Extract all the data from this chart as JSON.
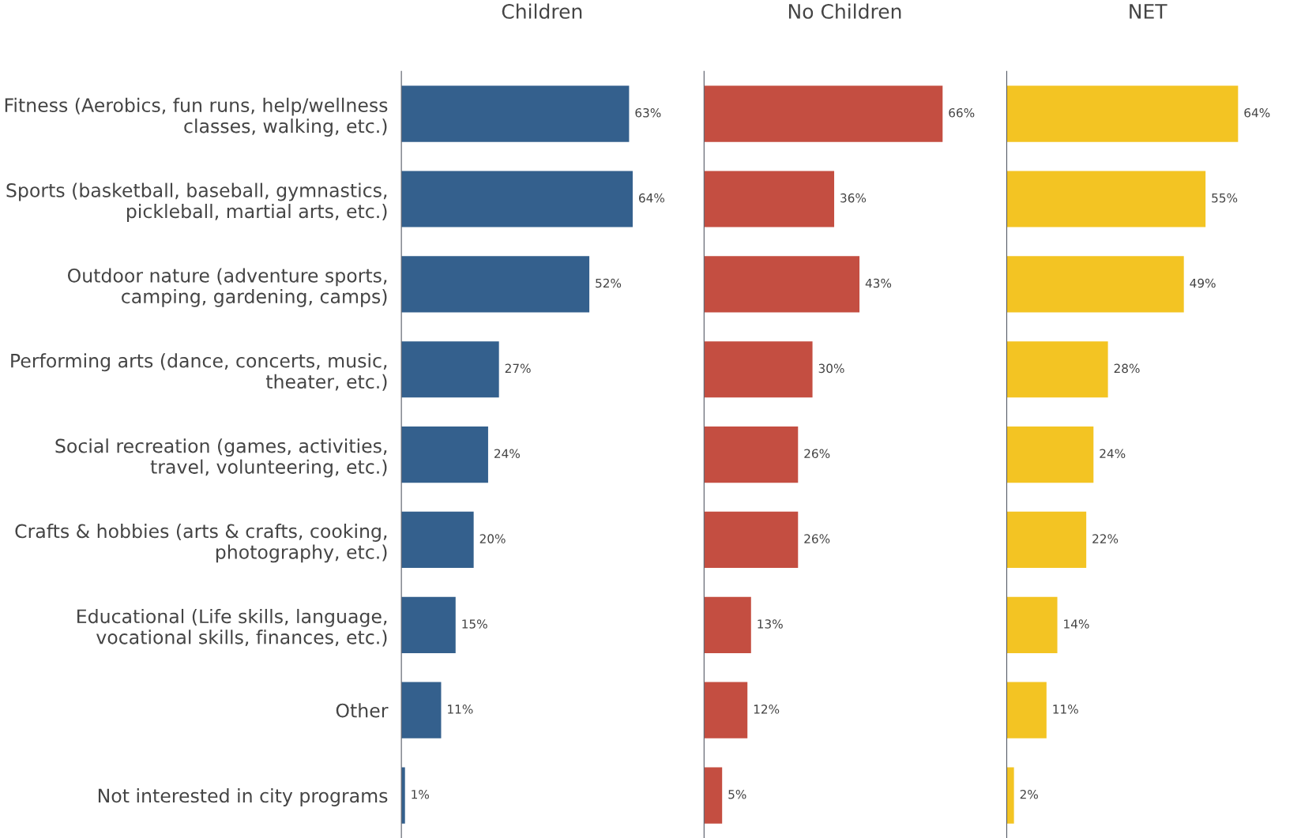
{
  "chart_data": [
    {
      "type": "bar",
      "orientation": "horizontal",
      "title": "Children",
      "tick_labels": "y",
      "grid": false,
      "legend": false,
      "categories": [
        "Fitness (Aerobics, fun runs, help/wellness classes, walking, etc.)",
        "Sports (basketball, baseball, gymnastics, pickleball, martial arts, etc.)",
        "Outdoor nature (adventure sports, camping, gardening, camps)",
        "Performing arts (dance, concerts, music, theater, etc.)",
        "Social recreation (games, activities, travel, volunteering, etc.)",
        "Crafts & hobbies (arts & crafts, cooking, photography, etc.)",
        "Educational (Life skills, language, vocational skills, finances, etc.)",
        "Other",
        "Not interested in city programs"
      ],
      "values": [
        63,
        64,
        52,
        27,
        24,
        20,
        15,
        11,
        1
      ],
      "color": "#34608d",
      "value_labels": [
        "63%",
        "64%",
        "52%",
        "27%",
        "24%",
        "20%",
        "15%",
        "11%",
        "1%"
      ]
    },
    {
      "type": "bar",
      "orientation": "horizontal",
      "title": "No Children",
      "tick_labels": false,
      "grid": false,
      "legend": false,
      "categories": [
        null,
        null,
        null,
        null,
        null,
        null,
        null,
        null,
        null
      ],
      "values": [
        66,
        36,
        43,
        30,
        26,
        26,
        13,
        12,
        5
      ],
      "color": "#c44e41",
      "value_labels": [
        "66%",
        "36%",
        "43%",
        "30%",
        "26%",
        "26%",
        "13%",
        "12%",
        "5%"
      ]
    },
    {
      "type": "bar",
      "orientation": "horizontal",
      "title": "NET",
      "tick_labels": false,
      "grid": false,
      "legend": false,
      "categories": [
        null,
        null,
        null,
        null,
        null,
        null,
        null,
        null,
        null
      ],
      "values": [
        64,
        55,
        49,
        28,
        24,
        22,
        14,
        11,
        2
      ],
      "color": "#f3c423",
      "value_labels": [
        "64%",
        "55%",
        "49%",
        "28%",
        "24%",
        "22%",
        "14%",
        "11%",
        "2%"
      ]
    }
  ]
}
